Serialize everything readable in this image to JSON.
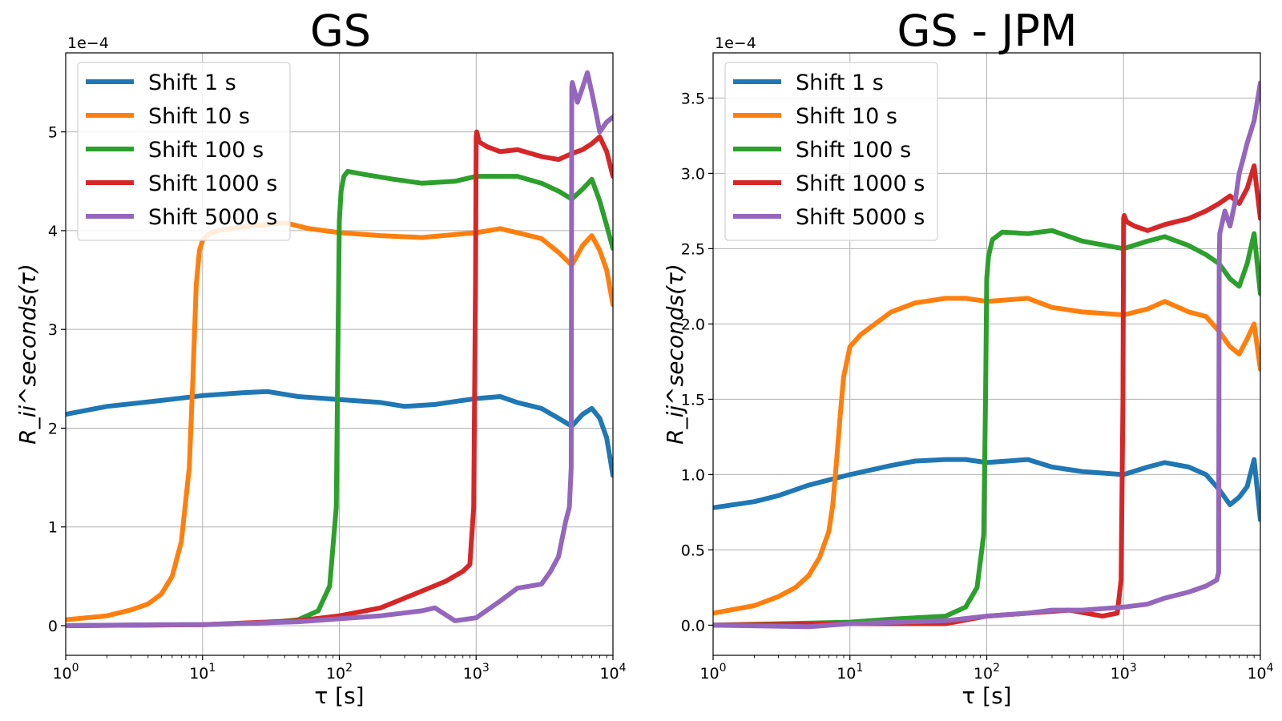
{
  "figure": {
    "colors": {
      "s1": "#1f77b4",
      "s10": "#ff7f0e",
      "s100": "#2ca02c",
      "s1000": "#d62728",
      "s5000": "#9467bd"
    }
  },
  "chart_data": [
    {
      "type": "line",
      "title": "GS",
      "multiplier": "1e−4",
      "xlabel": "τ [s]",
      "ylabel": "R_ii^seconds(τ)",
      "xscale": "log",
      "xlim": [
        1,
        10000
      ],
      "ylim": [
        -0.3,
        5.8
      ],
      "xticks": [
        1,
        10,
        100,
        1000,
        10000
      ],
      "xtick_labels": [
        [
          "10",
          "0"
        ],
        [
          "10",
          "1"
        ],
        [
          "10",
          "2"
        ],
        [
          "10",
          "3"
        ],
        [
          "10",
          "4"
        ]
      ],
      "yticks": [
        0,
        1,
        2,
        3,
        4,
        5
      ],
      "ytick_labels": [
        "0",
        "1",
        "2",
        "3",
        "4",
        "5"
      ],
      "grid": true,
      "legend_position": "upper-left",
      "series": [
        {
          "name": "Shift 1 s",
          "color": "#1f77b4",
          "x": [
            1,
            2,
            5,
            10,
            20,
            30,
            50,
            100,
            200,
            300,
            500,
            700,
            1000,
            1500,
            2000,
            3000,
            4000,
            5000,
            6000,
            7000,
            8000,
            9000,
            10000
          ],
          "y": [
            2.14,
            2.22,
            2.28,
            2.33,
            2.36,
            2.37,
            2.32,
            2.29,
            2.26,
            2.22,
            2.24,
            2.27,
            2.3,
            2.32,
            2.26,
            2.2,
            2.1,
            2.02,
            2.14,
            2.2,
            2.1,
            1.9,
            1.52
          ]
        },
        {
          "name": "Shift 10 s",
          "color": "#ff7f0e",
          "x": [
            1,
            2,
            3,
            4,
            5,
            6,
            7,
            8,
            8.5,
            9,
            9.5,
            10,
            11,
            13,
            20,
            40,
            60,
            100,
            200,
            400,
            1000,
            1500,
            2000,
            3000,
            4000,
            5000,
            6000,
            7000,
            8000,
            9000,
            10000
          ],
          "y": [
            0.06,
            0.1,
            0.16,
            0.22,
            0.32,
            0.5,
            0.85,
            1.6,
            2.5,
            3.45,
            3.8,
            3.9,
            3.96,
            4.0,
            4.04,
            4.08,
            4.02,
            3.98,
            3.95,
            3.93,
            3.98,
            4.02,
            3.98,
            3.92,
            3.78,
            3.65,
            3.85,
            3.95,
            3.8,
            3.6,
            3.25
          ]
        },
        {
          "name": "Shift 100 s",
          "color": "#2ca02c",
          "x": [
            1,
            10,
            30,
            50,
            70,
            85,
            95,
            98,
            100,
            103,
            108,
            115,
            150,
            250,
            400,
            700,
            1000,
            2000,
            3000,
            4000,
            5000,
            6000,
            7000,
            8000,
            9000,
            10000
          ],
          "y": [
            0,
            0.01,
            0.03,
            0.06,
            0.15,
            0.4,
            1.2,
            3.0,
            4.1,
            4.4,
            4.55,
            4.6,
            4.57,
            4.52,
            4.48,
            4.5,
            4.55,
            4.55,
            4.48,
            4.4,
            4.32,
            4.42,
            4.52,
            4.3,
            4.05,
            3.82
          ]
        },
        {
          "name": "Shift 1000 s",
          "color": "#d62728",
          "x": [
            1,
            10,
            50,
            100,
            200,
            400,
            600,
            800,
            900,
            960,
            990,
            1000,
            1010,
            1050,
            1200,
            1500,
            2000,
            3000,
            4000,
            5000,
            6000,
            7000,
            8000,
            9000,
            10000
          ],
          "y": [
            0,
            0.01,
            0.05,
            0.1,
            0.18,
            0.35,
            0.45,
            0.55,
            0.62,
            1.2,
            3.5,
            4.95,
            5.0,
            4.9,
            4.85,
            4.8,
            4.82,
            4.75,
            4.72,
            4.78,
            4.82,
            4.88,
            4.95,
            4.8,
            4.55
          ]
        },
        {
          "name": "Shift 5000 s",
          "color": "#9467bd",
          "x": [
            1,
            5,
            10,
            50,
            100,
            200,
            400,
            500,
            700,
            1000,
            1500,
            2000,
            3000,
            3500,
            4000,
            4500,
            4800,
            4950,
            5000,
            5050,
            5500,
            6000,
            6500,
            7000,
            7500,
            8000,
            9000,
            10000
          ],
          "y": [
            0,
            0.01,
            0.01,
            0.04,
            0.07,
            0.1,
            0.15,
            0.18,
            0.05,
            0.08,
            0.25,
            0.38,
            0.42,
            0.55,
            0.7,
            1.05,
            1.2,
            1.6,
            5.45,
            5.5,
            5.3,
            5.45,
            5.6,
            5.4,
            5.2,
            5.0,
            5.1,
            5.15
          ]
        }
      ]
    },
    {
      "type": "line",
      "title": "GS - JPM",
      "multiplier": "1e−4",
      "xlabel": "τ [s]",
      "ylabel": "R_ij^seconds(τ)",
      "xscale": "log",
      "xlim": [
        1,
        10000
      ],
      "ylim": [
        -0.2,
        3.8
      ],
      "xticks": [
        1,
        10,
        100,
        1000,
        10000
      ],
      "xtick_labels": [
        [
          "10",
          "0"
        ],
        [
          "10",
          "1"
        ],
        [
          "10",
          "2"
        ],
        [
          "10",
          "3"
        ],
        [
          "10",
          "4"
        ]
      ],
      "yticks": [
        0.0,
        0.5,
        1.0,
        1.5,
        2.0,
        2.5,
        3.0,
        3.5
      ],
      "ytick_labels": [
        "0.0",
        "0.5",
        "1.0",
        "1.5",
        "2.0",
        "2.5",
        "3.0",
        "3.5"
      ],
      "grid": true,
      "legend_position": "upper-left",
      "series": [
        {
          "name": "Shift 1 s",
          "color": "#1f77b4",
          "x": [
            1,
            2,
            3,
            5,
            10,
            20,
            30,
            50,
            70,
            100,
            200,
            300,
            500,
            1000,
            1500,
            2000,
            3000,
            4000,
            5000,
            6000,
            7000,
            8000,
            9000,
            10000
          ],
          "y": [
            0.78,
            0.82,
            0.86,
            0.93,
            1.0,
            1.06,
            1.09,
            1.1,
            1.1,
            1.08,
            1.1,
            1.05,
            1.02,
            1.0,
            1.05,
            1.08,
            1.05,
            1.0,
            0.9,
            0.8,
            0.85,
            0.92,
            1.1,
            0.7
          ]
        },
        {
          "name": "Shift 10 s",
          "color": "#ff7f0e",
          "x": [
            1,
            2,
            3,
            4,
            5,
            6,
            7,
            7.5,
            8,
            8.5,
            9,
            10,
            12,
            20,
            30,
            50,
            70,
            100,
            200,
            300,
            500,
            1000,
            1500,
            2000,
            3000,
            4000,
            5000,
            6000,
            7000,
            8000,
            9000,
            10000
          ],
          "y": [
            0.08,
            0.13,
            0.19,
            0.25,
            0.33,
            0.45,
            0.62,
            0.8,
            1.1,
            1.4,
            1.65,
            1.85,
            1.93,
            2.08,
            2.14,
            2.17,
            2.17,
            2.15,
            2.17,
            2.11,
            2.08,
            2.06,
            2.1,
            2.15,
            2.08,
            2.05,
            1.95,
            1.85,
            1.8,
            1.9,
            2.0,
            1.7
          ]
        },
        {
          "name": "Shift 100 s",
          "color": "#2ca02c",
          "x": [
            1,
            10,
            20,
            50,
            70,
            85,
            95,
            98,
            100,
            103,
            110,
            130,
            200,
            300,
            500,
            1000,
            1500,
            2000,
            3000,
            4000,
            5000,
            6000,
            7000,
            8000,
            9000,
            10000
          ],
          "y": [
            0,
            0.02,
            0.04,
            0.06,
            0.12,
            0.25,
            0.6,
            1.5,
            2.3,
            2.45,
            2.56,
            2.61,
            2.6,
            2.62,
            2.55,
            2.5,
            2.55,
            2.58,
            2.52,
            2.46,
            2.4,
            2.3,
            2.25,
            2.4,
            2.6,
            2.2
          ]
        },
        {
          "name": "Shift 1000 s",
          "color": "#d62728",
          "x": [
            1,
            10,
            50,
            100,
            200,
            400,
            700,
            900,
            960,
            990,
            1000,
            1010,
            1050,
            1200,
            1500,
            2000,
            3000,
            4000,
            5000,
            6000,
            7000,
            8000,
            9000,
            10000
          ],
          "y": [
            0,
            0.01,
            0.01,
            0.06,
            0.08,
            0.1,
            0.06,
            0.08,
            0.3,
            1.5,
            2.7,
            2.72,
            2.68,
            2.65,
            2.62,
            2.66,
            2.7,
            2.75,
            2.8,
            2.85,
            2.8,
            2.9,
            3.05,
            2.7
          ]
        },
        {
          "name": "Shift 5000 s",
          "color": "#9467bd",
          "x": [
            1,
            5,
            10,
            50,
            100,
            200,
            300,
            500,
            1000,
            1500,
            2000,
            3000,
            4000,
            4800,
            4950,
            5000,
            5050,
            5500,
            6000,
            6500,
            7000,
            7500,
            8000,
            9000,
            10000
          ],
          "y": [
            0,
            -0.01,
            0.01,
            0.03,
            0.06,
            0.08,
            0.1,
            0.1,
            0.12,
            0.14,
            0.18,
            0.22,
            0.26,
            0.3,
            0.35,
            2.4,
            2.6,
            2.75,
            2.65,
            2.8,
            3.0,
            3.1,
            3.2,
            3.35,
            3.6
          ]
        }
      ]
    }
  ]
}
